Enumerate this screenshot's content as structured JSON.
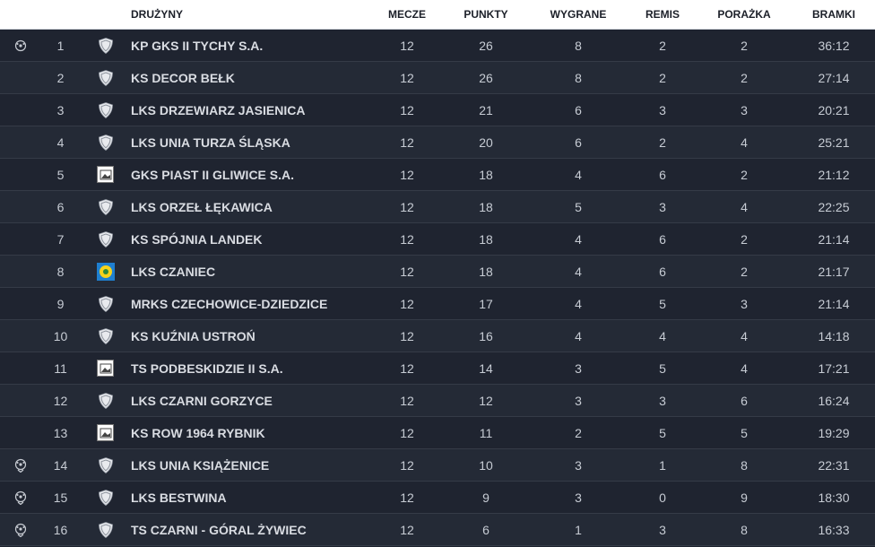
{
  "header": {
    "icon": "",
    "pos": "",
    "logo": "",
    "team": "DRUŻYNY",
    "played": "MECZE",
    "points": "PUNKTY",
    "wins": "WYGRANE",
    "draws": "REMIS",
    "losses": "PORAŻKA",
    "goals": "BRAMKI"
  },
  "rows": [
    {
      "marker": "ball",
      "pos": "1",
      "crest": "shield",
      "team": "KP GKS II TYCHY S.A.",
      "played": "12",
      "points": "26",
      "wins": "8",
      "draws": "2",
      "losses": "2",
      "goals": "36:12"
    },
    {
      "marker": "",
      "pos": "2",
      "crest": "shield",
      "team": "KS DECOR BEŁK",
      "played": "12",
      "points": "26",
      "wins": "8",
      "draws": "2",
      "losses": "2",
      "goals": "27:14"
    },
    {
      "marker": "",
      "pos": "3",
      "crest": "shield",
      "team": "LKS DRZEWIARZ JASIENICA",
      "played": "12",
      "points": "21",
      "wins": "6",
      "draws": "3",
      "losses": "3",
      "goals": "20:21"
    },
    {
      "marker": "",
      "pos": "4",
      "crest": "shield",
      "team": "LKS UNIA TURZA ŚLĄSKA",
      "played": "12",
      "points": "20",
      "wins": "6",
      "draws": "2",
      "losses": "4",
      "goals": "25:21"
    },
    {
      "marker": "",
      "pos": "5",
      "crest": "photo",
      "team": "GKS PIAST II GLIWICE S.A.",
      "played": "12",
      "points": "18",
      "wins": "4",
      "draws": "6",
      "losses": "2",
      "goals": "21:12"
    },
    {
      "marker": "",
      "pos": "6",
      "crest": "shield",
      "team": "LKS ORZEŁ ŁĘKAWICA",
      "played": "12",
      "points": "18",
      "wins": "5",
      "draws": "3",
      "losses": "4",
      "goals": "22:25"
    },
    {
      "marker": "",
      "pos": "7",
      "crest": "shield",
      "team": "KS SPÓJNIA LANDEK",
      "played": "12",
      "points": "18",
      "wins": "4",
      "draws": "6",
      "losses": "2",
      "goals": "21:14"
    },
    {
      "marker": "",
      "pos": "8",
      "crest": "yellow",
      "team": "LKS CZANIEC",
      "played": "12",
      "points": "18",
      "wins": "4",
      "draws": "6",
      "losses": "2",
      "goals": "21:17"
    },
    {
      "marker": "",
      "pos": "9",
      "crest": "shield",
      "team": "MRKS CZECHOWICE-DZIEDZICE",
      "played": "12",
      "points": "17",
      "wins": "4",
      "draws": "5",
      "losses": "3",
      "goals": "21:14"
    },
    {
      "marker": "",
      "pos": "10",
      "crest": "shield",
      "team": "KS KUŹNIA USTROŃ",
      "played": "12",
      "points": "16",
      "wins": "4",
      "draws": "4",
      "losses": "4",
      "goals": "14:18"
    },
    {
      "marker": "",
      "pos": "11",
      "crest": "photo",
      "team": "TS PODBESKIDZIE II S.A.",
      "played": "12",
      "points": "14",
      "wins": "3",
      "draws": "5",
      "losses": "4",
      "goals": "17:21"
    },
    {
      "marker": "",
      "pos": "12",
      "crest": "shield",
      "team": "LKS CZARNI GORZYCE",
      "played": "12",
      "points": "12",
      "wins": "3",
      "draws": "3",
      "losses": "6",
      "goals": "16:24"
    },
    {
      "marker": "",
      "pos": "13",
      "crest": "photo",
      "team": "KS ROW 1964 RYBNIK",
      "played": "12",
      "points": "11",
      "wins": "2",
      "draws": "5",
      "losses": "5",
      "goals": "19:29"
    },
    {
      "marker": "ball-down",
      "pos": "14",
      "crest": "shield",
      "team": "LKS UNIA KSIĄŻENICE",
      "played": "12",
      "points": "10",
      "wins": "3",
      "draws": "1",
      "losses": "8",
      "goals": "22:31"
    },
    {
      "marker": "ball-down",
      "pos": "15",
      "crest": "shield",
      "team": "LKS BESTWINA",
      "played": "12",
      "points": "9",
      "wins": "3",
      "draws": "0",
      "losses": "9",
      "goals": "18:30"
    },
    {
      "marker": "ball-down",
      "pos": "16",
      "crest": "shield",
      "team": "TS CZARNI - GÓRAL ŻYWIEC",
      "played": "12",
      "points": "6",
      "wins": "1",
      "draws": "3",
      "losses": "8",
      "goals": "16:33"
    }
  ]
}
